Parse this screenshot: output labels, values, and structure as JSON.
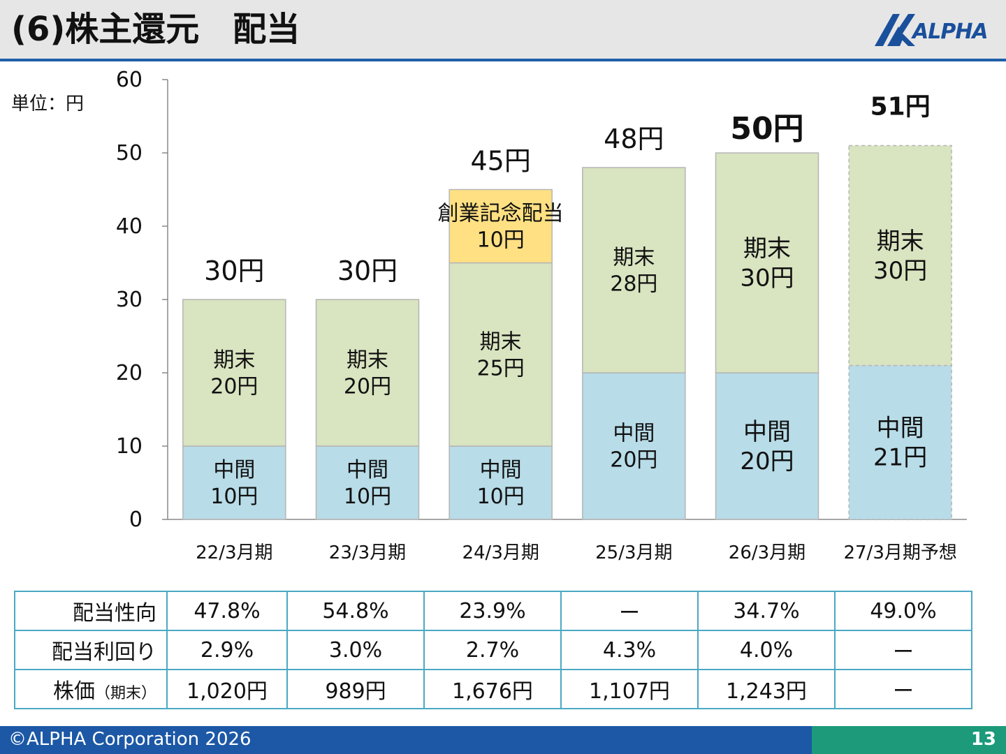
{
  "slide": {
    "title": "(6)株主還元　配当",
    "unit_label": "単位：円",
    "logo_text": "ALPHA",
    "copyright": "©ALPHA Corporation 2026",
    "page_number": "13"
  },
  "colors": {
    "interim": "#b8dce8",
    "year_end": "#d9e4c0",
    "commemorative": "#ffe082",
    "axis": "#888888",
    "table_border": "#4aa8c4",
    "header_rule": "#1f5fa8",
    "footer_blue": "#1c58a6",
    "footer_green": "#1c9a7a",
    "logo": "#1a4f9c"
  },
  "chart_data": {
    "type": "bar",
    "stacked": true,
    "categories": [
      "22/3月期",
      "23/3月期",
      "24/3月期",
      "25/3月期",
      "26/3月期",
      "27/3月期予想"
    ],
    "ylim": [
      0,
      60
    ],
    "yticks": [
      0,
      10,
      20,
      30,
      40,
      50,
      60
    ],
    "series": [
      {
        "key": "interim",
        "values": [
          10,
          10,
          10,
          20,
          20,
          21
        ],
        "labels": [
          [
            "中間",
            "10円"
          ],
          [
            "中間",
            "10円"
          ],
          [
            "中間",
            "10円"
          ],
          [
            "中間",
            "20円"
          ],
          [
            "中間",
            "20円"
          ],
          [
            "中間",
            "21円"
          ]
        ]
      },
      {
        "key": "year_end",
        "values": [
          20,
          20,
          25,
          28,
          30,
          30
        ],
        "labels": [
          [
            "期末",
            "20円"
          ],
          [
            "期末",
            "20円"
          ],
          [
            "期末",
            "25円"
          ],
          [
            "期末",
            "28円"
          ],
          [
            "期末",
            "30円"
          ],
          [
            "期末",
            "30円"
          ]
        ]
      },
      {
        "key": "commemorative",
        "values": [
          0,
          0,
          10,
          0,
          0,
          0
        ],
        "labels": [
          [],
          [],
          [
            "創業記念配当",
            "10円"
          ],
          [],
          [],
          []
        ]
      }
    ],
    "totals": [
      "30円",
      "30円",
      "45円",
      "48円",
      "50円",
      "51円"
    ],
    "forecast_index": 5,
    "grid": false
  },
  "table": {
    "rows": [
      {
        "label": "配当性向",
        "label_note": "",
        "values": [
          "47.8%",
          "54.8%",
          "23.9%",
          "ー",
          "34.7%",
          "49.0%"
        ]
      },
      {
        "label": "配当利回り",
        "label_note": "",
        "values": [
          "2.9%",
          "3.0%",
          "2.7%",
          "4.3%",
          "4.0%",
          "ー"
        ]
      },
      {
        "label": "株価",
        "label_note": "（期末）",
        "values": [
          "1,020円",
          "989円",
          "1,676円",
          "1,107円",
          "1,243円",
          "ー"
        ]
      }
    ]
  }
}
